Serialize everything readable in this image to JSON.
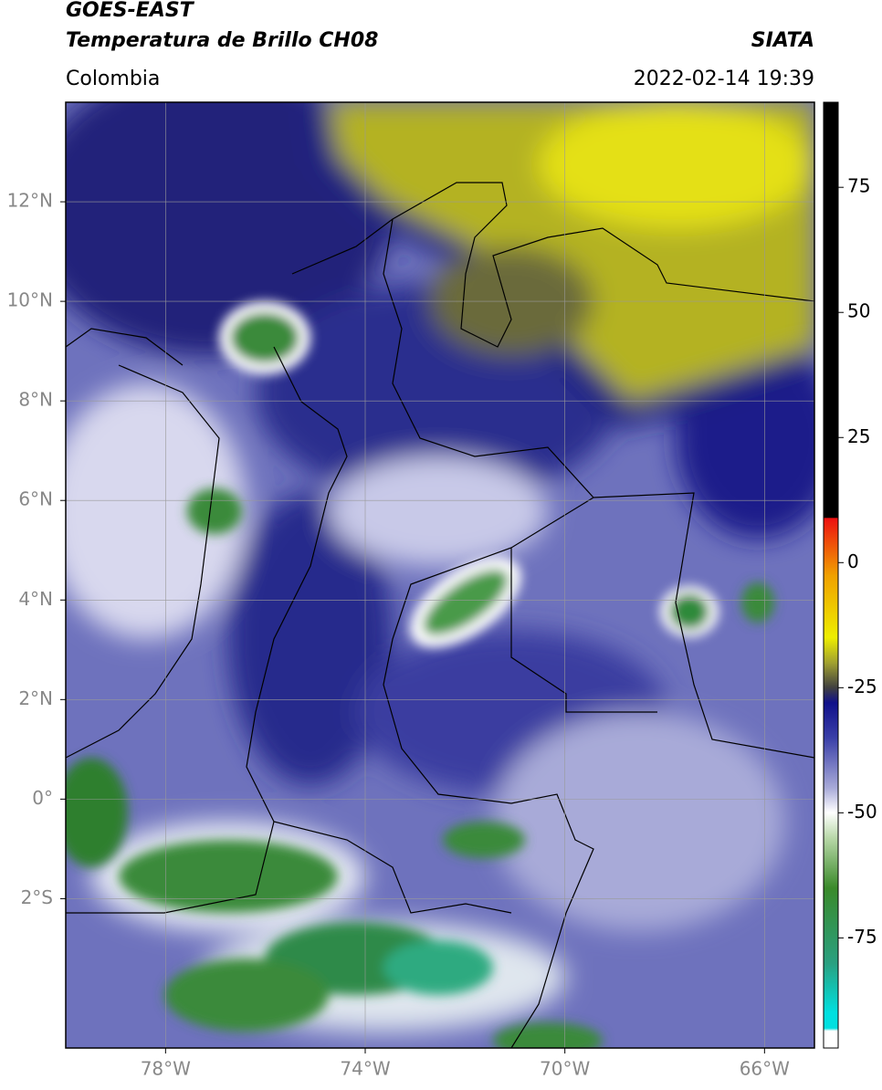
{
  "header": {
    "title": [
      "GOES-EAST",
      "Temperatura de Brillo CH08"
    ],
    "region": "Colombia",
    "source": "SIATA",
    "datetime": "2022-02-14 19:39"
  },
  "map": {
    "lon_lim": [
      -80,
      -65
    ],
    "lat_lim": [
      -5,
      14
    ],
    "lon_ticks": [
      {
        "value": -78,
        "label": "78°W"
      },
      {
        "value": -74,
        "label": "74°W"
      },
      {
        "value": -70,
        "label": "70°W"
      },
      {
        "value": -66,
        "label": "66°W"
      }
    ],
    "lat_ticks": [
      {
        "value": 12,
        "label": "12°N"
      },
      {
        "value": 10,
        "label": "10°N"
      },
      {
        "value": 8,
        "label": "8°N"
      },
      {
        "value": 6,
        "label": "6°N"
      },
      {
        "value": 4,
        "label": "4°N"
      },
      {
        "value": 2,
        "label": "2°N"
      },
      {
        "value": 0,
        "label": "0°"
      },
      {
        "value": -2,
        "label": "2°S"
      }
    ],
    "grid": true
  },
  "colorbar": {
    "lim": [
      -97,
      92
    ],
    "ticks": [
      75,
      50,
      25,
      0,
      -25,
      -50,
      -75
    ]
  }
}
